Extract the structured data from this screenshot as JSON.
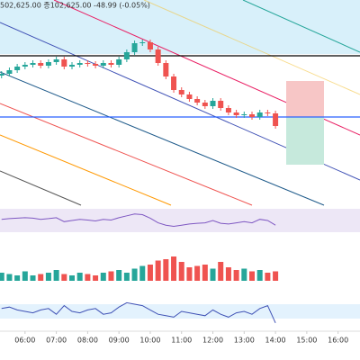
{
  "chart_data": {
    "type": "candlestick",
    "header": "502,625.00  종102,625.00  -48.99 (-0.05%)",
    "x": [
      5.25,
      5.5,
      5.75,
      6,
      6.25,
      6.5,
      6.75,
      7,
      7.25,
      7.5,
      7.75,
      8,
      8.25,
      8.5,
      8.75,
      9,
      9.25,
      9.5,
      9.75,
      10,
      10.25,
      10.5,
      10.75,
      11,
      11.25,
      11.5,
      11.75,
      12,
      12.25,
      12.5,
      12.75,
      13,
      13.25,
      13.5,
      13.75,
      14
    ],
    "open": [
      102480,
      102490,
      102510,
      102530,
      102540,
      102550,
      102535,
      102555,
      102570,
      102530,
      102540,
      102550,
      102545,
      102535,
      102550,
      102540,
      102570,
      102610,
      102660,
      102665,
      102625,
      102550,
      102475,
      102400,
      102375,
      102350,
      102330,
      102310,
      102340,
      102300,
      102275,
      102260,
      102265,
      102250,
      102275,
      102270
    ],
    "high": [
      102505,
      102525,
      102545,
      102555,
      102565,
      102565,
      102570,
      102585,
      102585,
      102555,
      102565,
      102565,
      102560,
      102565,
      102565,
      102585,
      102625,
      102675,
      102680,
      102680,
      102640,
      102565,
      102490,
      102415,
      102390,
      102365,
      102345,
      102355,
      102355,
      102315,
      102290,
      102280,
      102280,
      102290,
      102290,
      102285
    ],
    "low": [
      102465,
      102475,
      102495,
      102515,
      102525,
      102520,
      102520,
      102540,
      102515,
      102515,
      102525,
      102530,
      102520,
      102520,
      102525,
      102525,
      102555,
      102595,
      102645,
      102610,
      102535,
      102460,
      102385,
      102360,
      102335,
      102315,
      102295,
      102295,
      102285,
      102260,
      102245,
      102245,
      102235,
      102235,
      102255,
      102185
    ],
    "close": [
      102490,
      102510,
      102530,
      102540,
      102550,
      102535,
      102555,
      102570,
      102530,
      102540,
      102550,
      102545,
      102535,
      102550,
      102540,
      102570,
      102610,
      102660,
      102665,
      102625,
      102550,
      102475,
      102400,
      102375,
      102350,
      102330,
      102310,
      102340,
      102300,
      102275,
      102260,
      102265,
      102250,
      102275,
      102270,
      102200
    ],
    "up_color": "#26a69a",
    "down_color": "#ef5350",
    "ylim": [
      101775,
      102900
    ],
    "xlim": [
      5.2,
      16.7
    ],
    "xticks": [
      {
        "value": 6,
        "label": "06:00"
      },
      {
        "value": 7,
        "label": "07:00"
      },
      {
        "value": 8,
        "label": "08:00"
      },
      {
        "value": 9,
        "label": "09:00"
      },
      {
        "value": 10,
        "label": "10:00"
      },
      {
        "value": 11,
        "label": "11:00"
      },
      {
        "value": 12,
        "label": "12:00"
      },
      {
        "value": 13,
        "label": "13:00"
      },
      {
        "value": 14,
        "label": "14:00"
      },
      {
        "value": 15,
        "label": "15:00"
      },
      {
        "value": 16,
        "label": "16:00"
      }
    ],
    "hlines": [
      {
        "value": 102590,
        "color": "#000000"
      },
      {
        "value": 102250,
        "color": "#2962ff"
      }
    ],
    "volume": {
      "values": [
        30,
        25,
        20,
        35,
        20,
        25,
        30,
        40,
        25,
        20,
        30,
        25,
        20,
        30,
        35,
        40,
        30,
        45,
        55,
        60,
        75,
        80,
        90,
        70,
        50,
        55,
        60,
        45,
        70,
        50,
        40,
        45,
        35,
        40,
        30,
        35
      ],
      "ylim": [
        0,
        100
      ]
    },
    "indicators": [
      {
        "color": "#7e57c2",
        "ylim": [
          0,
          100
        ],
        "values": [
          55,
          58,
          60,
          62,
          60,
          55,
          58,
          62,
          45,
          50,
          55,
          52,
          48,
          55,
          52,
          62,
          70,
          78,
          75,
          60,
          40,
          30,
          25,
          30,
          35,
          38,
          40,
          50,
          38,
          35,
          40,
          45,
          40,
          55,
          50,
          30
        ]
      },
      {
        "color": "#3f51b5",
        "ylim": [
          0,
          100
        ],
        "values": [
          60,
          65,
          55,
          50,
          45,
          55,
          60,
          40,
          70,
          50,
          45,
          55,
          60,
          40,
          45,
          65,
          80,
          75,
          70,
          55,
          40,
          35,
          30,
          50,
          45,
          40,
          35,
          55,
          40,
          30,
          45,
          50,
          40,
          60,
          70,
          10
        ]
      }
    ]
  }
}
